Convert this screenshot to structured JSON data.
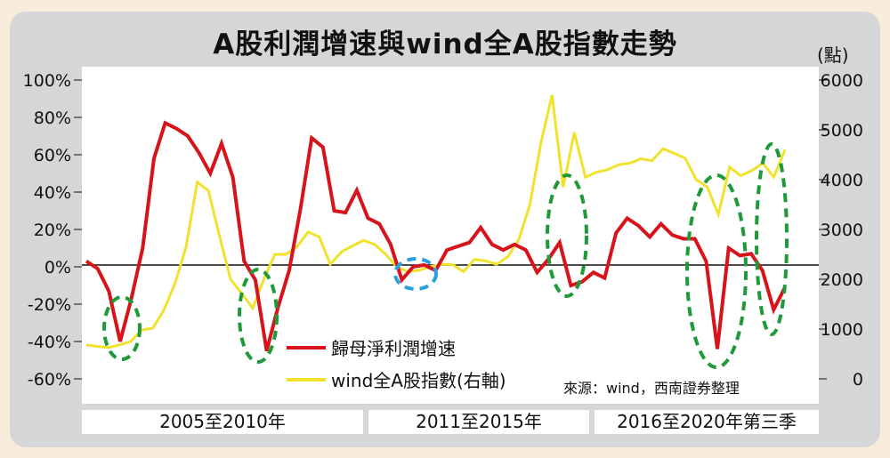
{
  "title": "A股利潤增速與wind全A股指數走勢",
  "unit_right": "(點)",
  "source": "來源：wind，西南證券整理",
  "periods": [
    "2005至2010年",
    "2011至2015年",
    "2016至2020年第三季"
  ],
  "colors": {
    "profit": "#d7141b",
    "index": "#f0e22d",
    "highlight_green": "#1f9a38",
    "highlight_blue": "#2a9fe0",
    "background": "#d5d6d8"
  },
  "chart_data": {
    "type": "line",
    "y_left": {
      "ticks": [
        "100%",
        "80%",
        "60%",
        "40%",
        "20%",
        "0%",
        "-20%",
        "-40%",
        "-60%"
      ],
      "range": [
        -60,
        100
      ]
    },
    "y_right": {
      "ticks": [
        "6000",
        "5000",
        "4000",
        "3000",
        "2000",
        "1000",
        "0"
      ],
      "range": [
        0,
        6000
      ]
    },
    "grid": false,
    "legend_position": "bottom-center",
    "series": [
      {
        "name": "歸母淨利潤增速",
        "axis": "left",
        "values": [
          3,
          -1,
          -13,
          -40,
          -17,
          10,
          58,
          77,
          74,
          70,
          61,
          50,
          66,
          48,
          3,
          -7,
          -45,
          -22,
          -2,
          31,
          69,
          64,
          30,
          29,
          41,
          26,
          23,
          12,
          -7,
          0,
          1,
          -2,
          9,
          11,
          13,
          21,
          12,
          9,
          12,
          9,
          -3,
          4,
          13,
          -10,
          -8,
          -3,
          -6,
          18,
          26,
          22,
          16,
          23,
          17,
          15,
          15,
          3,
          -44,
          10,
          6,
          7,
          -2,
          -23,
          -11
        ]
      },
      {
        "name": "wind全A股指數(右軸)",
        "axis": "right",
        "values": [
          680,
          650,
          630,
          680,
          750,
          980,
          1020,
          1380,
          1920,
          2650,
          3950,
          3780,
          2880,
          2000,
          1720,
          1420,
          2000,
          2500,
          2500,
          2650,
          2950,
          2850,
          2300,
          2550,
          2670,
          2780,
          2700,
          2500,
          2250,
          2150,
          2180,
          2250,
          2300,
          2300,
          2150,
          2400,
          2370,
          2300,
          2450,
          2800,
          3500,
          4750,
          5700,
          3850,
          4950,
          4050,
          4150,
          4200,
          4300,
          4330,
          4420,
          4380,
          4620,
          4530,
          4430,
          4000,
          3850,
          3300,
          4250,
          4080,
          4180,
          4330,
          4050,
          4600
        ]
      }
    ],
    "annotations": [
      "dashed green ellipses at troughs and index turning points",
      "dashed blue ellipse near zero in 2011-2015"
    ]
  }
}
